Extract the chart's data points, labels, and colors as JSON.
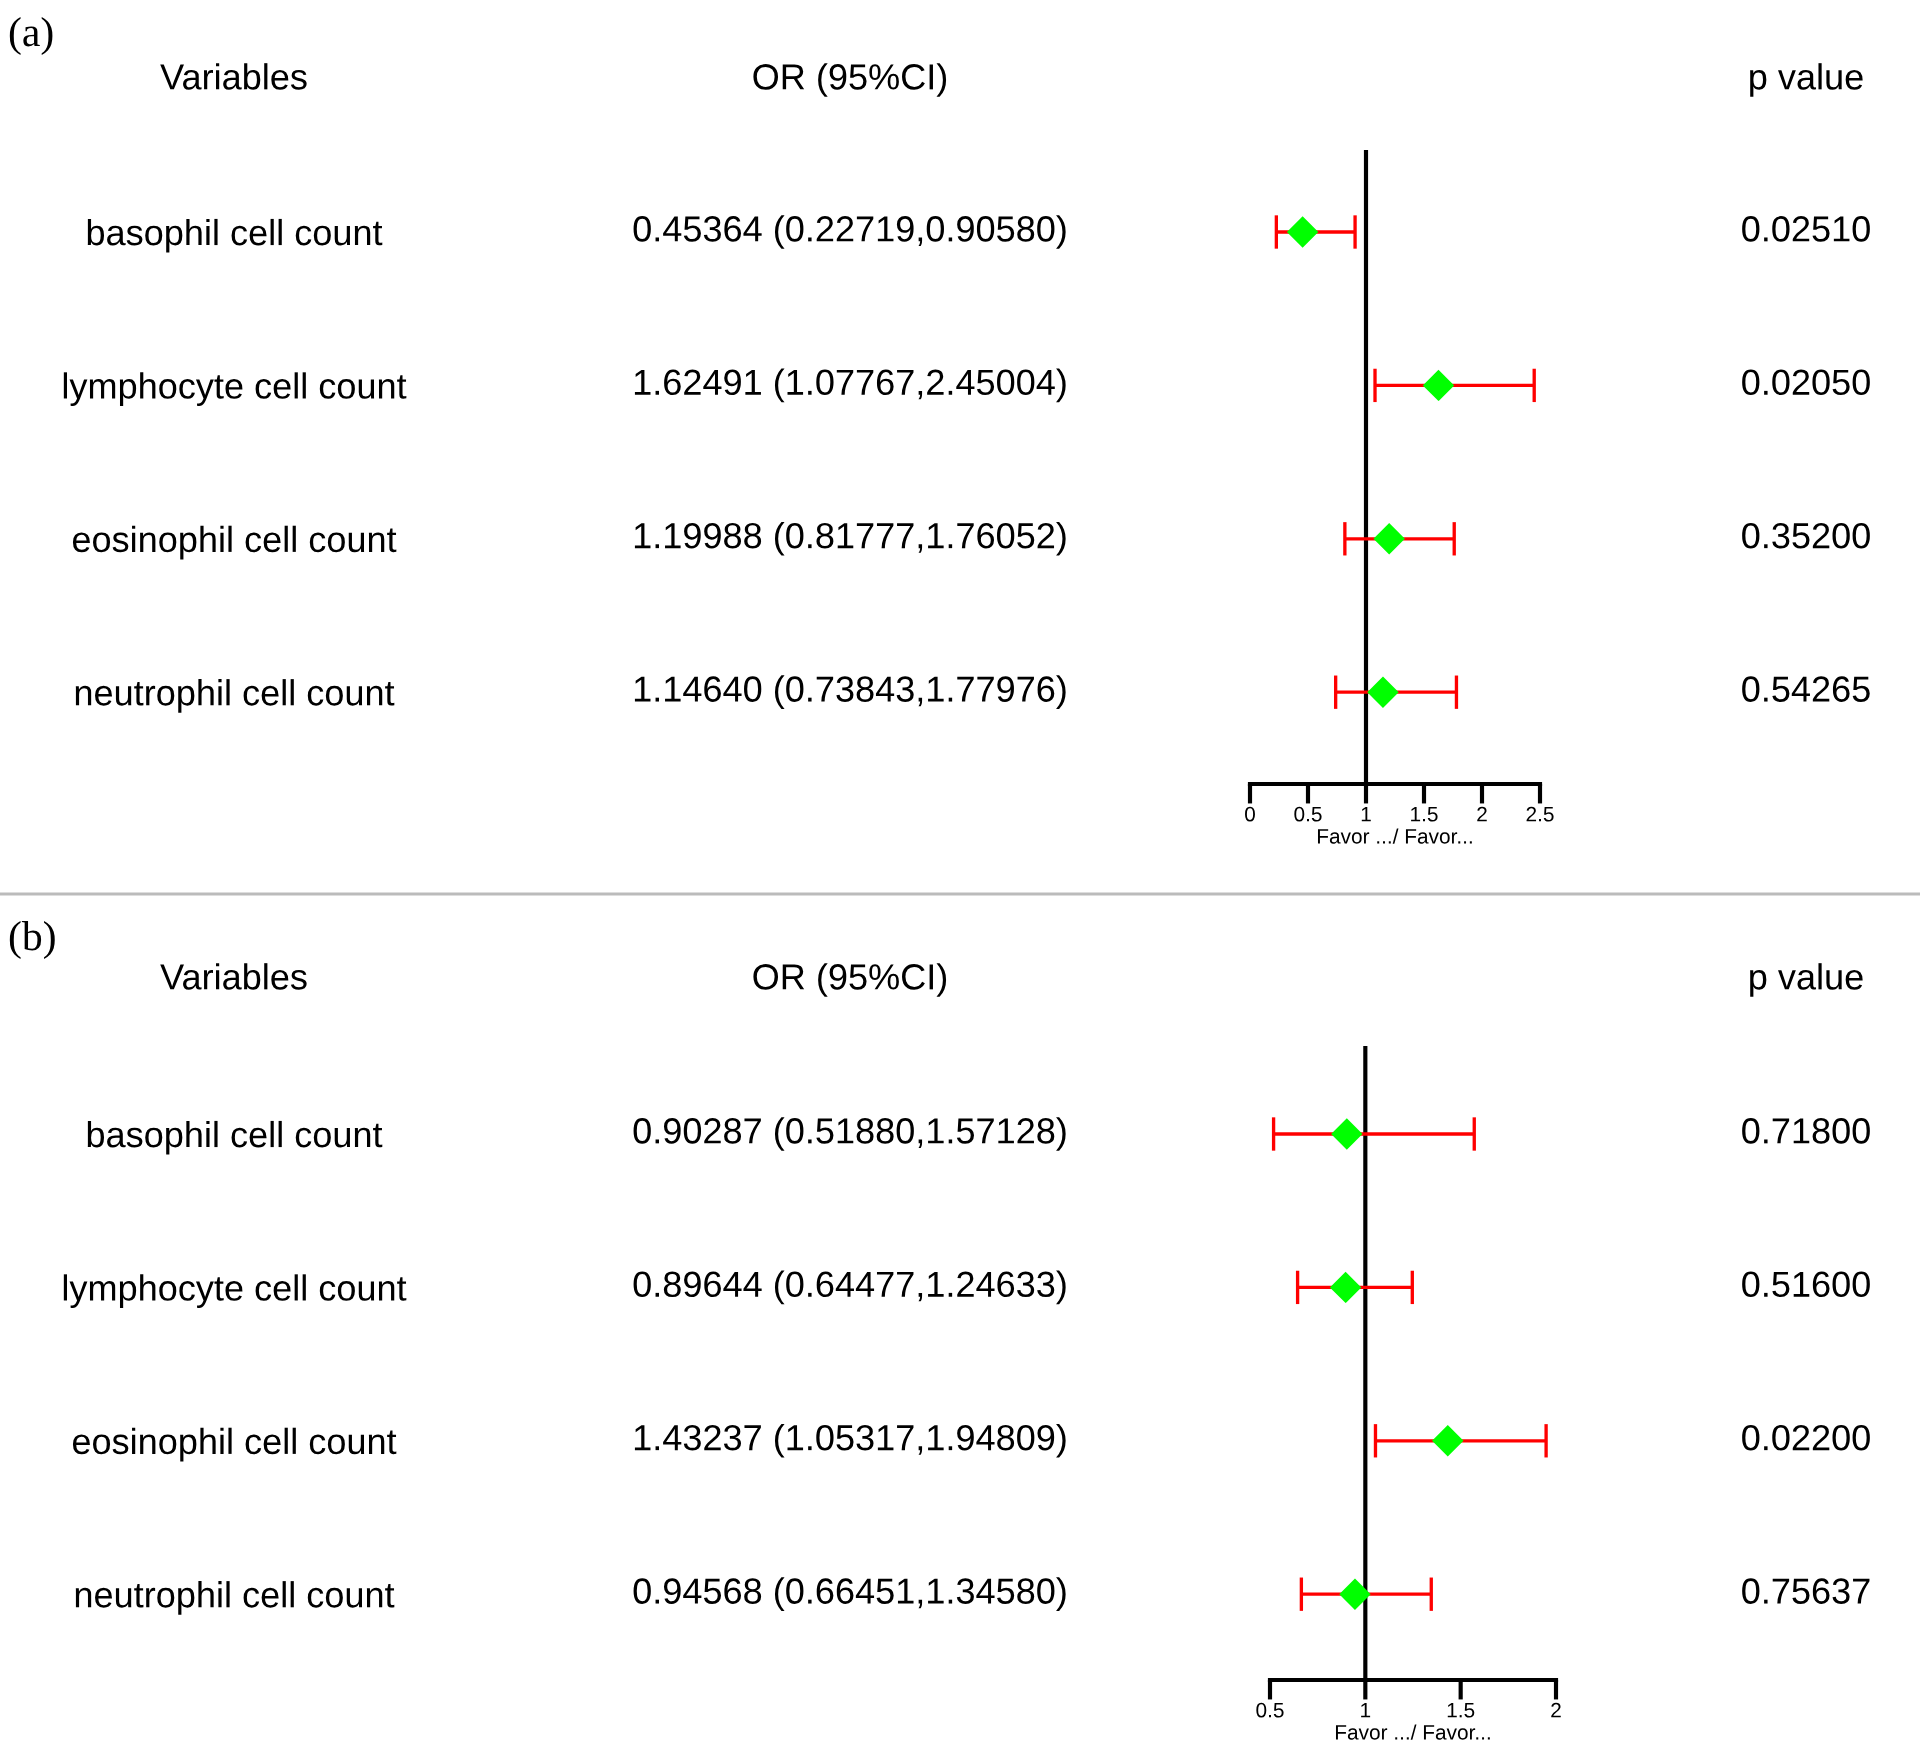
{
  "chart_data": [
    {
      "type": "scatter",
      "orientation": "horizontal",
      "xlabel": "Favor .../ Favor...",
      "categories": [
        "basophil cell count",
        "lymphocyte cell count",
        "eosinophil cell count",
        "neutrophil cell count"
      ],
      "values": [
        0.45364,
        1.62491,
        1.19988,
        1.1464
      ],
      "errors": [
        [
          0.22719,
          0.9058
        ],
        [
          1.07767,
          2.45004
        ],
        [
          0.81777,
          1.76052
        ],
        [
          0.73843,
          1.77976
        ]
      ],
      "value_labels": [
        "0.45364 (0.22719,0.90580)",
        "1.62491 (1.07767,2.45004)",
        "1.19988 (0.81777,1.76052)",
        "1.14640 (0.73843,1.77976)"
      ],
      "annotations": [
        "(a)",
        "Variables",
        "OR (95%CI)",
        "p value",
        "0.02510",
        "0.02050",
        "0.35200",
        "0.54265"
      ],
      "color": "#00ff00",
      "marker": "diamond",
      "xlim": [
        0,
        2.5
      ],
      "xticks": [
        0,
        0.5,
        1,
        1.5,
        2,
        2.5
      ],
      "ref_lines": [
        {
          "axis": "x",
          "value": 1,
          "color": "#000000"
        }
      ],
      "grid": false,
      "tick_labels": "x"
    },
    {
      "type": "scatter",
      "orientation": "horizontal",
      "xlabel": "Favor .../ Favor...",
      "categories": [
        "basophil cell count",
        "lymphocyte cell count",
        "eosinophil cell count",
        "neutrophil cell count"
      ],
      "values": [
        0.90287,
        0.89644,
        1.43237,
        0.94568
      ],
      "errors": [
        [
          0.5188,
          1.57128
        ],
        [
          0.64477,
          1.24633
        ],
        [
          1.05317,
          1.94809
        ],
        [
          0.66451,
          1.3458
        ]
      ],
      "value_labels": [
        "0.90287 (0.51880,1.57128)",
        "0.89644 (0.64477,1.24633)",
        "1.43237 (1.05317,1.94809)",
        "0.94568 (0.66451,1.34580)"
      ],
      "annotations": [
        "(b)",
        "Variables",
        "OR (95%CI)",
        "p value",
        "0.71800",
        "0.51600",
        "0.02200",
        "0.75637"
      ],
      "color": "#00ff00",
      "marker": "diamond",
      "xlim": [
        0.5,
        2
      ],
      "xticks": [
        0.5,
        1,
        1.5,
        2
      ],
      "ref_lines": [
        {
          "axis": "x",
          "value": 1,
          "color": "#000000"
        }
      ],
      "grid": false,
      "tick_labels": "x"
    }
  ]
}
